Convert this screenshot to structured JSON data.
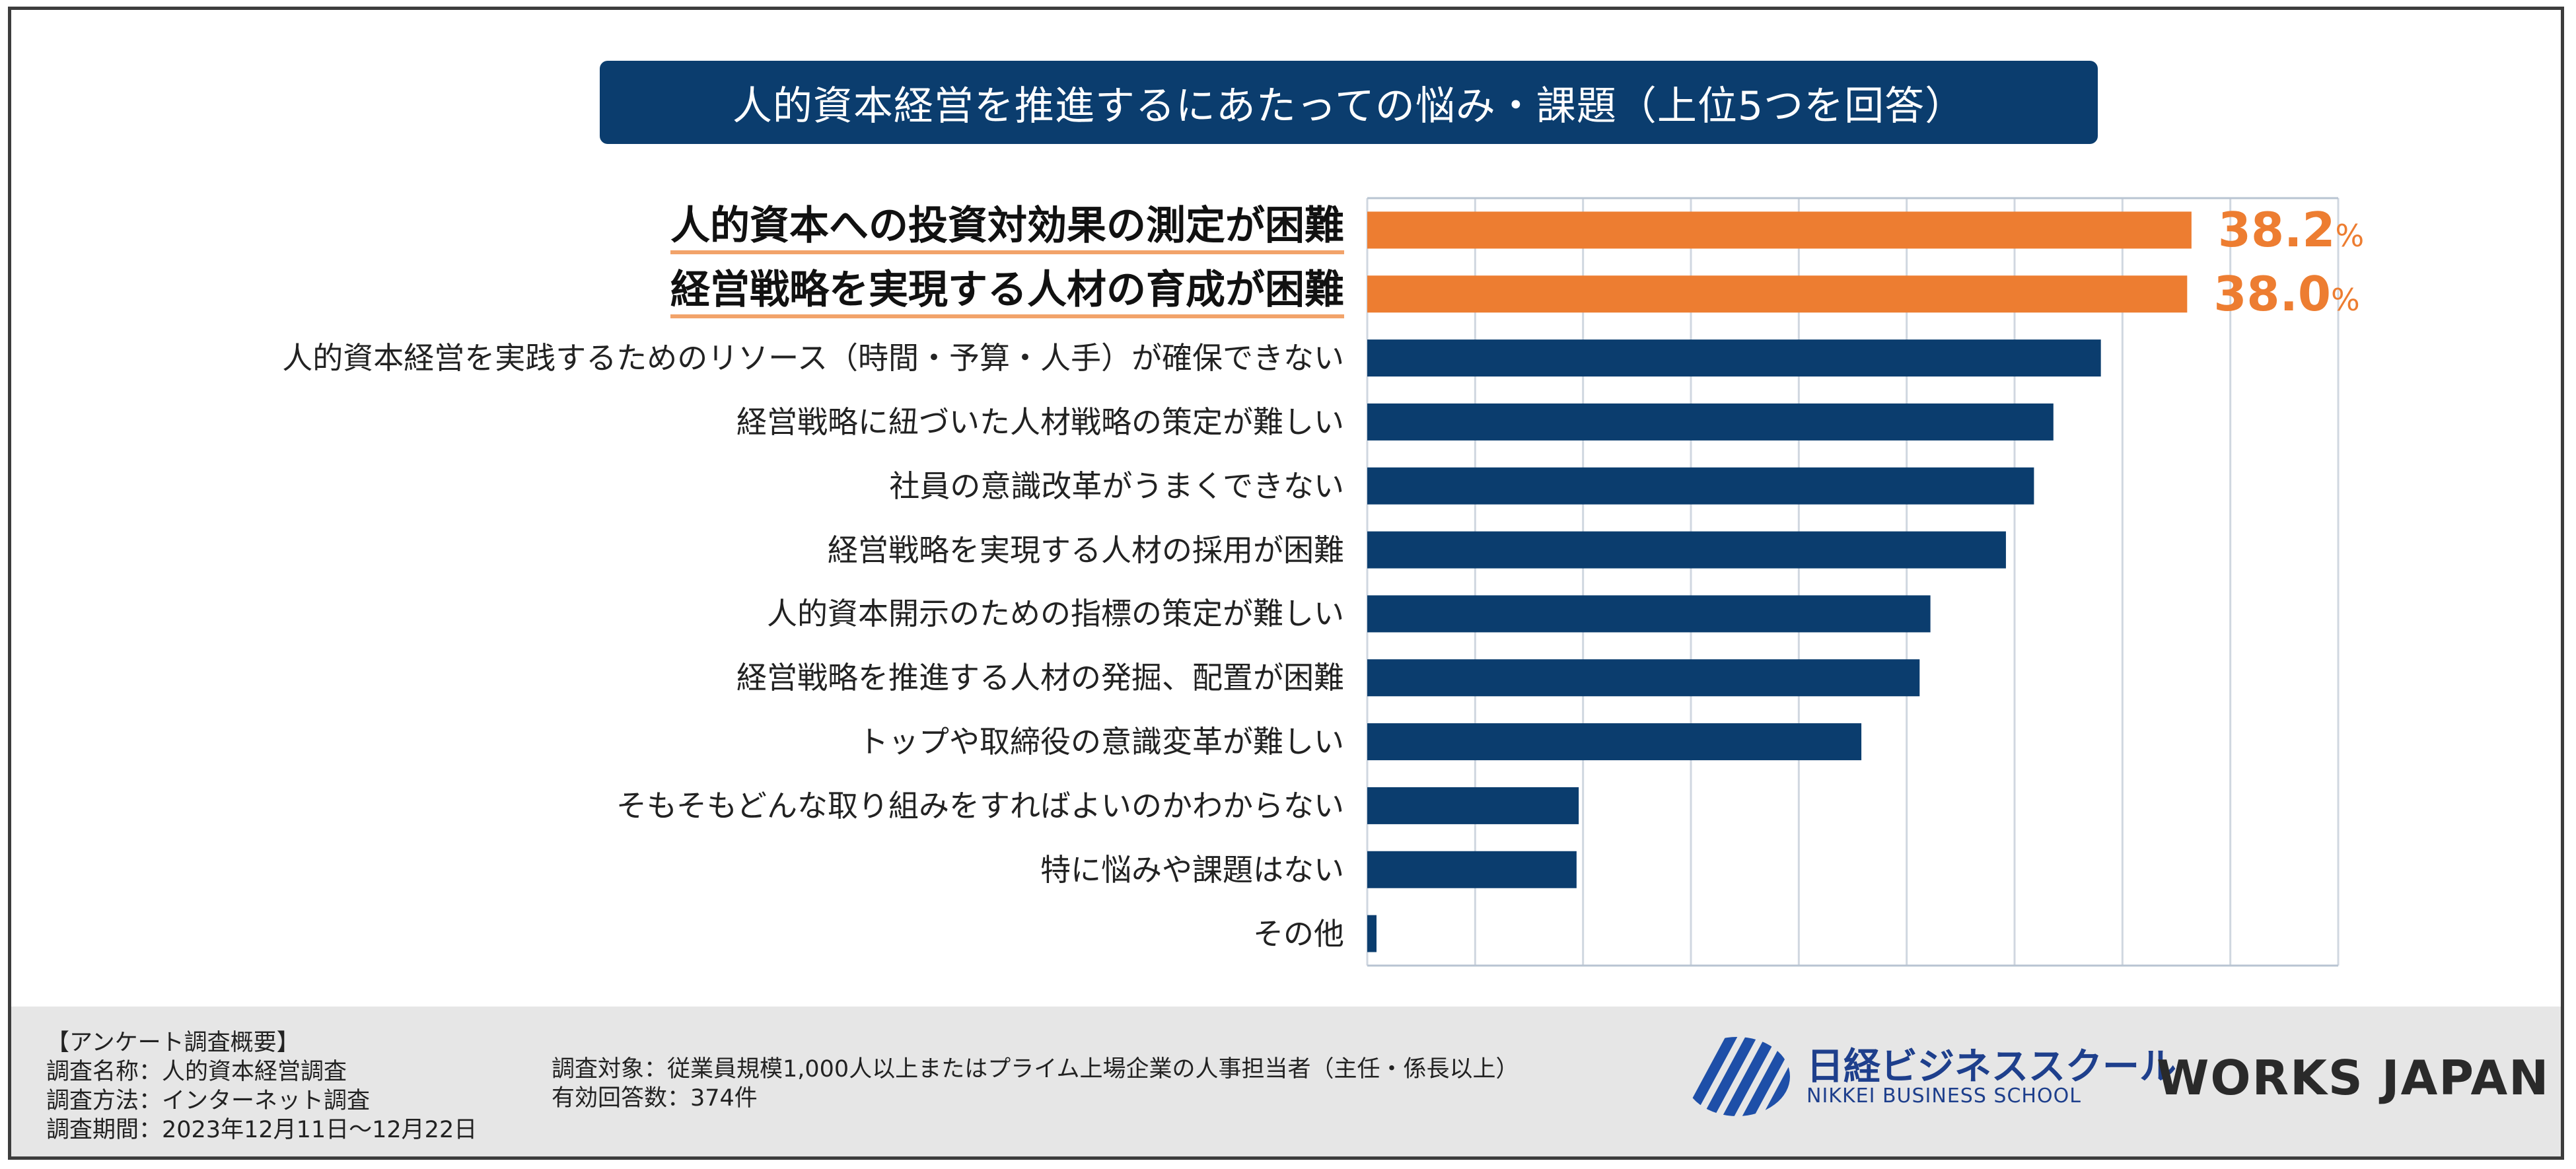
{
  "title": "人的資本経営を推進するにあたっての悩み・課題（上位5つを回答）",
  "colors": {
    "highlight": "#ed7d31",
    "bar": "#0b3d6e",
    "grid": "#d0d7e0",
    "title_bg": "#0b3d6e",
    "footer_bg": "#e6e6e6"
  },
  "chart_data": {
    "type": "bar",
    "orientation": "horizontal",
    "title": "人的資本経営を推進するにあたっての悩み・課題（上位5つを回答）",
    "xlim": [
      0,
      45
    ],
    "grid": true,
    "unit": "%",
    "categories": [
      "人的資本への投資対効果の測定が困難",
      "経営戦略を実現する人材の育成が困難",
      "人的資本経営を実践するためのリソース（時間・予算・人手）が確保できない",
      "経営戦略に紐づいた人材戦略の策定が難しい",
      "社員の意識改革がうまくできない",
      "経営戦略を実現する人材の採用が困難",
      "人的資本開示のための指標の策定が難しい",
      "経営戦略を推進する人材の発掘、配置が困難",
      "トップや取締役の意識変革が難しい",
      "そもそもどんな取り組みをすればよいのかわからない",
      "特に悩みや課題はない",
      "その他"
    ],
    "values": [
      38.2,
      38.0,
      34.0,
      31.8,
      30.9,
      29.6,
      26.1,
      25.6,
      22.9,
      9.8,
      9.7,
      0.4
    ],
    "highlighted": [
      true,
      true,
      false,
      false,
      false,
      false,
      false,
      false,
      false,
      false,
      false,
      false
    ],
    "value_labels": [
      {
        "num": "38.2",
        "unit": "%"
      },
      {
        "num": "38.0",
        "unit": "%"
      }
    ]
  },
  "footer": {
    "heading": "【アンケート調査概要】",
    "name": "調査名称：人的資本経営調査",
    "method": "調査方法：インターネット調査",
    "period": "調査期間：2023年12月11日〜12月22日",
    "target": "調査対象：従業員規模1,000人以上またはプライム上場企業の人事担当者（主任・係長以上）",
    "responses": "有効回答数：374件"
  },
  "logos": {
    "nbs_jp": "日経ビジネススクール",
    "nbs_en": "NIKKEI BUSINESS SCHOOL",
    "works": "WORKS JAPAN"
  }
}
